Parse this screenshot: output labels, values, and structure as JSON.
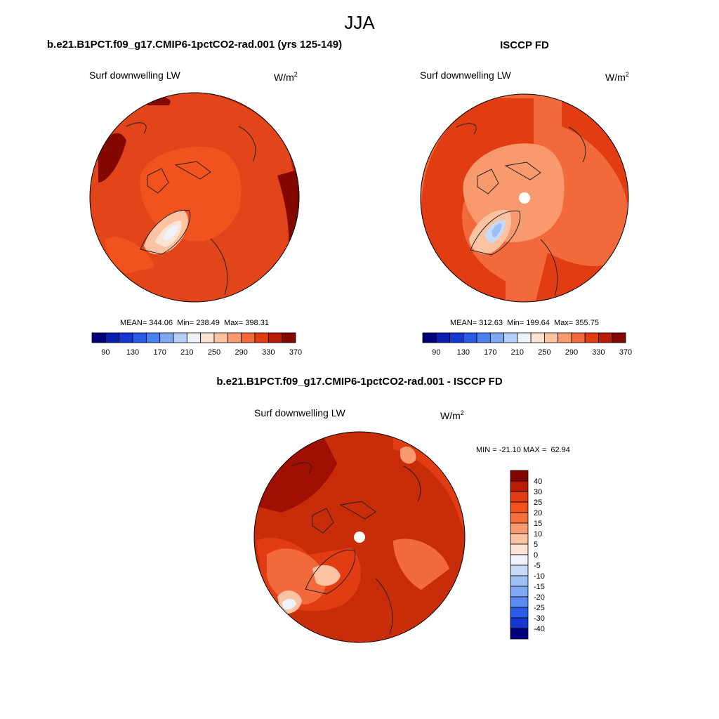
{
  "title": "JJA",
  "panels": [
    {
      "title": "b.e21.B1PCT.f09_g17.CMIP6-1pctCO2-rad.001 (yrs 125-149)",
      "variable": "Surf downwelling LW",
      "units": "W/m",
      "units_exponent": "2",
      "stats": "MEAN= 344.06  Min= 238.49  Max= 398.31",
      "colorbar": {
        "labels": [
          "90",
          "130",
          "170",
          "210",
          "250",
          "290",
          "330",
          "370"
        ],
        "colors": [
          "#00007f",
          "#0a1eb0",
          "#1638d0",
          "#2a5ce8",
          "#4a80f0",
          "#7ea8f4",
          "#b6cff8",
          "#eef2fb",
          "#fde3d2",
          "#fbc3a2",
          "#f8996e",
          "#f26a3c",
          "#e23c12",
          "#b81c04",
          "#820800"
        ]
      }
    },
    {
      "title": "ISCCP FD",
      "variable": "Surf downwelling LW",
      "units": "W/m",
      "units_exponent": "2",
      "stats": "MEAN= 312.63  Min= 199.64  Max= 355.75",
      "colorbar": {
        "labels": [
          "90",
          "130",
          "170",
          "210",
          "250",
          "290",
          "330",
          "370"
        ],
        "colors": [
          "#00007f",
          "#0a1eb0",
          "#1638d0",
          "#2a5ce8",
          "#4a80f0",
          "#7ea8f4",
          "#b6cff8",
          "#eef2fb",
          "#fde3d2",
          "#fbc3a2",
          "#f8996e",
          "#f26a3c",
          "#e23c12",
          "#b81c04",
          "#820800"
        ]
      }
    },
    {
      "title": "b.e21.B1PCT.f09_g17.CMIP6-1pctCO2-rad.001 - ISCCP FD",
      "variable": "Surf downwelling LW",
      "units": "W/m",
      "units_exponent": "2",
      "stats": "MIN = -21.10 MAX =  62.94",
      "colorbar": {
        "labels": [
          "40",
          "30",
          "25",
          "20",
          "15",
          "10",
          "5",
          "0",
          "-5",
          "-10",
          "-15",
          "-20",
          "-25",
          "-30",
          "-40"
        ],
        "colors": [
          "#820800",
          "#b81c04",
          "#e23c12",
          "#f2521e",
          "#f6703c",
          "#f99a70",
          "#fbc3a2",
          "#fde3d2",
          "#eef2fb",
          "#c6daf8",
          "#9ebff6",
          "#7ea8f4",
          "#5a8cf0",
          "#2a5ce8",
          "#1638d0",
          "#00007f"
        ]
      }
    }
  ]
}
